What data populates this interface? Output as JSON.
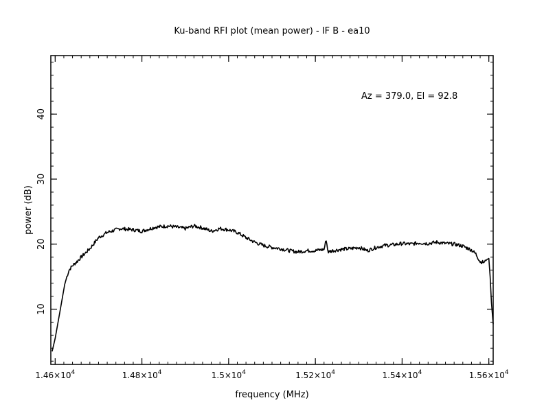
{
  "chart_data": {
    "type": "line",
    "title": "Ku-band RFI plot (mean power) - IF B - ea10",
    "xlabel": "frequency (MHz)",
    "ylabel": "power (dB)",
    "annotation": "Az = 379.0, El = 92.8",
    "xlim": [
      14590,
      15610
    ],
    "ylim": [
      1.5,
      49.0
    ],
    "x_ticks": [
      {
        "value": 14600,
        "label_base": "1.46×10",
        "label_exp": "4"
      },
      {
        "value": 14800,
        "label_base": "1.48×10",
        "label_exp": "4"
      },
      {
        "value": 15000,
        "label_base": "1.5×10",
        "label_exp": "4"
      },
      {
        "value": 15200,
        "label_base": "1.52×10",
        "label_exp": "4"
      },
      {
        "value": 15400,
        "label_base": "1.54×10",
        "label_exp": "4"
      },
      {
        "value": 15600,
        "label_base": "1.56×10",
        "label_exp": "4"
      }
    ],
    "y_ticks": [
      {
        "value": 10,
        "label": "10"
      },
      {
        "value": 20,
        "label": "20"
      },
      {
        "value": 30,
        "label": "30"
      },
      {
        "value": 40,
        "label": "40"
      }
    ],
    "x_minor_step": 20,
    "y_minor_step": 2,
    "grid": false,
    "line_color": "#000000",
    "series": [
      {
        "x": [
          14593,
          14600,
          14612,
          14622,
          14627,
          14632,
          14640,
          14650,
          14660,
          14680,
          14700,
          14720,
          14750,
          14780,
          14800,
          14830,
          14860,
          14880,
          14900,
          14920,
          14940,
          14960,
          14980,
          15000,
          15020,
          15040,
          15060,
          15080,
          15100,
          15120,
          15140,
          15160,
          15180,
          15200,
          15220,
          15225,
          15228,
          15230,
          15240,
          15260,
          15280,
          15300,
          15320,
          15340,
          15360,
          15380,
          15400,
          15420,
          15440,
          15460,
          15480,
          15500,
          15520,
          15540,
          15550,
          15560,
          15570,
          15580,
          15590,
          15595,
          15600,
          15603,
          15606,
          15610
        ],
        "y": [
          3.5,
          5.5,
          10.0,
          13.8,
          15.0,
          16.0,
          16.7,
          17.3,
          18.0,
          19.3,
          21.0,
          21.8,
          22.4,
          22.2,
          22.0,
          22.6,
          22.8,
          22.6,
          22.4,
          22.8,
          22.5,
          22.0,
          22.4,
          22.2,
          21.8,
          21.0,
          20.3,
          19.8,
          19.5,
          19.3,
          19.0,
          18.8,
          19.0,
          19.0,
          19.2,
          20.7,
          19.3,
          18.8,
          19.0,
          19.2,
          19.3,
          19.5,
          19.0,
          19.5,
          19.8,
          19.9,
          20.1,
          20.0,
          20.2,
          20.1,
          20.3,
          20.1,
          20.0,
          19.7,
          19.4,
          19.1,
          18.5,
          17.3,
          17.2,
          17.6,
          17.8,
          15.0,
          11.0,
          7.7
        ]
      }
    ]
  }
}
